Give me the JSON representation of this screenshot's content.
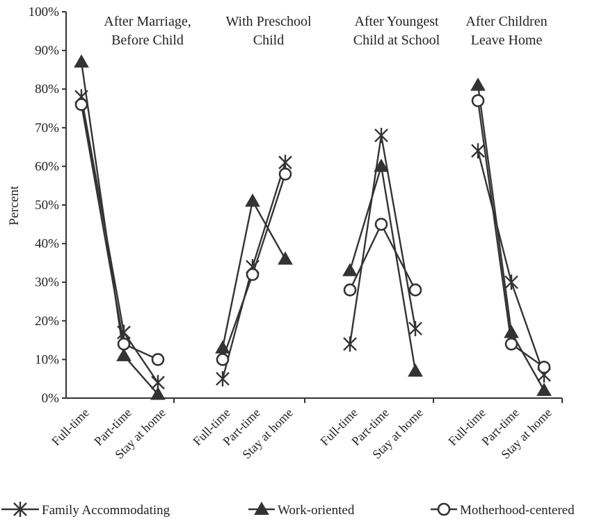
{
  "chart_data": {
    "type": "line",
    "ylabel": "Percent",
    "ylim": [
      0,
      100
    ],
    "y_ticks": [
      "0%",
      "10%",
      "20%",
      "30%",
      "40%",
      "50%",
      "60%",
      "70%",
      "80%",
      "90%",
      "100%"
    ],
    "categories": [
      "Full-time",
      "Part-time",
      "Stay at home"
    ],
    "panels": [
      {
        "title_lines": [
          "After Marriage,",
          "Before Child"
        ],
        "series": [
          {
            "name": "Family Accommodating",
            "values": [
              78,
              17,
              4
            ]
          },
          {
            "name": "Work-oriented",
            "values": [
              87,
              11,
              1
            ]
          },
          {
            "name": "Motherhood-centered",
            "values": [
              76,
              14,
              10
            ]
          }
        ]
      },
      {
        "title_lines": [
          "With Preschool",
          "Child"
        ],
        "series": [
          {
            "name": "Family Accommodating",
            "values": [
              5,
              34,
              61
            ]
          },
          {
            "name": "Work-oriented",
            "values": [
              13,
              51,
              36
            ]
          },
          {
            "name": "Motherhood-centered",
            "values": [
              10,
              32,
              58
            ]
          }
        ]
      },
      {
        "title_lines": [
          "After Youngest",
          "Child at School"
        ],
        "series": [
          {
            "name": "Family Accommodating",
            "values": [
              14,
              68,
              18
            ]
          },
          {
            "name": "Work-oriented",
            "values": [
              33,
              60,
              7
            ]
          },
          {
            "name": "Motherhood-centered",
            "values": [
              28,
              45,
              28
            ]
          }
        ]
      },
      {
        "title_lines": [
          "After Children",
          "Leave Home"
        ],
        "series": [
          {
            "name": "Family Accommodating",
            "values": [
              64,
              30,
              6
            ]
          },
          {
            "name": "Work-oriented",
            "values": [
              81,
              17,
              2
            ]
          },
          {
            "name": "Motherhood-centered",
            "values": [
              77,
              14,
              8
            ]
          }
        ]
      }
    ],
    "legend": {
      "placement": "bottom",
      "entries": [
        {
          "name": "Family Accommodating",
          "marker": "x-star"
        },
        {
          "name": "Work-oriented",
          "marker": "filled-triangle"
        },
        {
          "name": "Motherhood-centered",
          "marker": "open-circle"
        }
      ]
    },
    "grid": false,
    "colors": {
      "ink": "#333333",
      "background": "#ffffff"
    }
  }
}
